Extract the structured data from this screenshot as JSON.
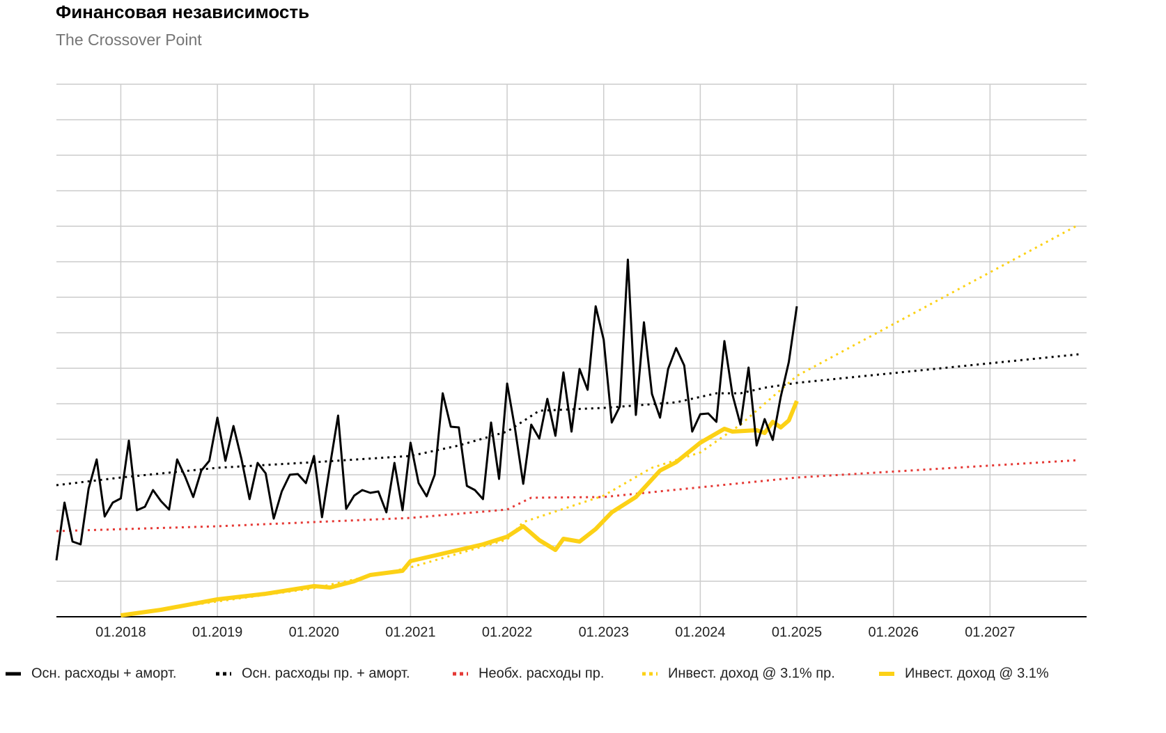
{
  "chart_data": {
    "type": "line",
    "title": "Финансовая независимость",
    "subtitle": "The Crossover Point",
    "xlim": [
      "2017-05",
      "2028-01"
    ],
    "xticks": [
      {
        "value": "2018-01",
        "label": "01.2018"
      },
      {
        "value": "2019-01",
        "label": "01.2019"
      },
      {
        "value": "2020-01",
        "label": "01.2020"
      },
      {
        "value": "2021-01",
        "label": "01.2021"
      },
      {
        "value": "2022-01",
        "label": "01.2022"
      },
      {
        "value": "2023-01",
        "label": "01.2023"
      },
      {
        "value": "2024-01",
        "label": "01.2024"
      },
      {
        "value": "2025-01",
        "label": "01.2025"
      },
      {
        "value": "2026-01",
        "label": "01.2026"
      },
      {
        "value": "2027-01",
        "label": "01.2027"
      }
    ],
    "ylim": [
      0,
      765
    ],
    "yticks": [
      0,
      51,
      102,
      153,
      204,
      255,
      306,
      357,
      408,
      459,
      510,
      561,
      612,
      663,
      714,
      765
    ],
    "grid": true,
    "legend": "bottom",
    "series": [
      {
        "name": "Осн. расходы + аморт.",
        "color": "#000000",
        "style": "solid",
        "x": [
          "2017-05",
          "2017-06",
          "2017-07",
          "2017-08",
          "2017-09",
          "2017-10",
          "2017-11",
          "2017-12",
          "2018-01",
          "2018-02",
          "2018-03",
          "2018-04",
          "2018-05",
          "2018-06",
          "2018-07",
          "2018-08",
          "2018-09",
          "2018-10",
          "2018-11",
          "2018-12",
          "2019-01",
          "2019-02",
          "2019-03",
          "2019-04",
          "2019-05",
          "2019-06",
          "2019-07",
          "2019-08",
          "2019-09",
          "2019-10",
          "2019-11",
          "2019-12",
          "2020-01",
          "2020-02",
          "2020-03",
          "2020-04",
          "2020-05",
          "2020-06",
          "2020-07",
          "2020-08",
          "2020-09",
          "2020-10",
          "2020-11",
          "2020-12",
          "2021-01",
          "2021-02",
          "2021-03",
          "2021-04",
          "2021-05",
          "2021-06",
          "2021-07",
          "2021-08",
          "2021-09",
          "2021-10",
          "2021-11",
          "2021-12",
          "2022-01",
          "2022-02",
          "2022-03",
          "2022-04",
          "2022-05",
          "2022-06",
          "2022-07",
          "2022-08",
          "2022-09",
          "2022-10",
          "2022-11",
          "2022-12",
          "2023-01",
          "2023-02",
          "2023-03",
          "2023-04",
          "2023-05",
          "2023-06",
          "2023-07",
          "2023-08",
          "2023-09",
          "2023-10",
          "2023-11",
          "2023-12",
          "2024-01",
          "2024-02",
          "2024-03",
          "2024-04",
          "2024-05",
          "2024-06",
          "2024-07",
          "2024-08",
          "2024-09",
          "2024-10",
          "2024-11",
          "2024-12",
          "2025-01"
        ],
        "values": [
          81,
          164,
          108,
          104,
          184,
          226,
          144,
          164,
          170,
          253,
          153,
          158,
          182,
          166,
          154,
          226,
          201,
          172,
          210,
          224,
          286,
          224,
          274,
          226,
          169,
          221,
          206,
          141,
          180,
          204,
          205,
          192,
          231,
          143,
          218,
          289,
          155,
          174,
          182,
          178,
          180,
          150,
          221,
          153,
          250,
          192,
          173,
          204,
          321,
          273,
          272,
          188,
          182,
          169,
          279,
          198,
          335,
          269,
          191,
          276,
          256,
          313,
          260,
          351,
          266,
          356,
          326,
          446,
          398,
          279,
          302,
          513,
          290,
          423,
          320,
          286,
          356,
          386,
          361,
          266,
          291,
          292,
          280,
          396,
          319,
          276,
          358,
          246,
          284,
          254,
          316,
          366,
          446
        ]
      },
      {
        "name": "Осн. расходы пр. + аморт.",
        "color": "#000000",
        "style": "dotted",
        "x": [
          "2017-05",
          "2018-01",
          "2019-01",
          "2020-01",
          "2021-01",
          "2021-07",
          "2022-01",
          "2022-05",
          "2023-01",
          "2023-10",
          "2024-03",
          "2024-06",
          "2024-09",
          "2025-01",
          "2027-12"
        ],
        "values": [
          189,
          200,
          214,
          222,
          231,
          246,
          266,
          296,
          300,
          308,
          321,
          321,
          329,
          336,
          377
        ]
      },
      {
        "name": "Необх. расходы пр.",
        "color": "#e53935",
        "style": "dotted",
        "x": [
          "2017-05",
          "2019-01",
          "2020-01",
          "2021-01",
          "2022-01",
          "2022-04",
          "2023-01",
          "2024-01",
          "2025-01",
          "2027-12"
        ],
        "values": [
          123,
          130,
          136,
          142,
          154,
          171,
          172,
          186,
          200,
          225
        ]
      },
      {
        "name": "Инвест. доход @ 3.1% пр.",
        "color": "#fcd116",
        "style": "dotted",
        "x": [
          "2018-01",
          "2019-01",
          "2020-01",
          "2021-01",
          "2022-01",
          "2022-03",
          "2023-01",
          "2023-07",
          "2024-01",
          "2024-06",
          "2025-01",
          "2027-12"
        ],
        "values": [
          2,
          22,
          41,
          71,
          111,
          136,
          174,
          214,
          236,
          276,
          346,
          563
        ]
      },
      {
        "name": "Инвест. доход @ 3.1%",
        "color": "#fcd116",
        "style": "solid",
        "x": [
          "2018-01",
          "2018-06",
          "2019-01",
          "2019-07",
          "2020-01",
          "2020-03",
          "2020-06",
          "2020-08",
          "2020-12",
          "2021-01",
          "2021-04",
          "2021-07",
          "2021-10",
          "2022-01",
          "2022-03",
          "2022-05",
          "2022-07",
          "2022-08",
          "2022-10",
          "2022-12",
          "2023-02",
          "2023-05",
          "2023-08",
          "2023-10",
          "2024-01",
          "2024-04",
          "2024-05",
          "2024-08",
          "2024-09",
          "2024-10",
          "2024-11",
          "2024-12",
          "2025-01"
        ],
        "values": [
          2,
          10,
          25,
          33,
          44,
          42,
          51,
          60,
          66,
          80,
          88,
          96,
          104,
          115,
          130,
          110,
          96,
          112,
          108,
          126,
          150,
          172,
          210,
          222,
          250,
          270,
          266,
          268,
          264,
          280,
          272,
          282,
          310
        ]
      }
    ]
  }
}
